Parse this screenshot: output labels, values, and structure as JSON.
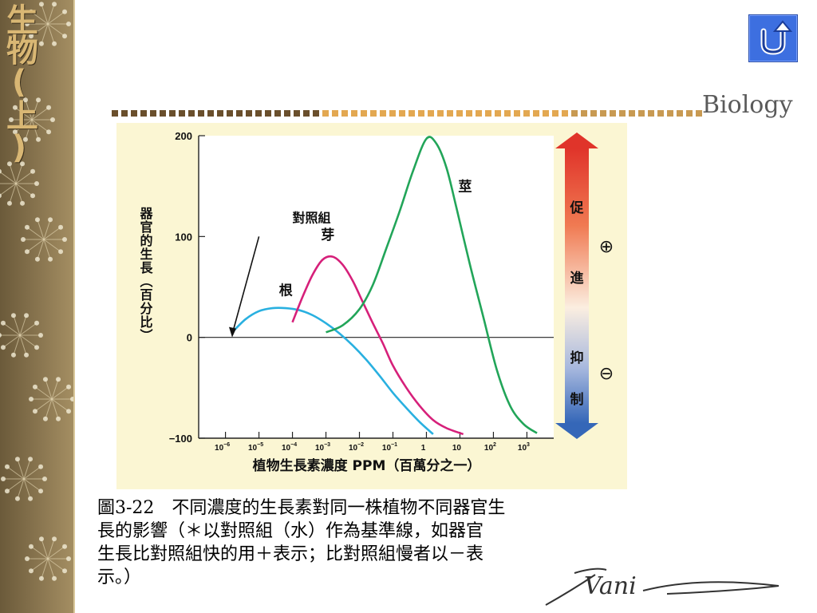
{
  "sidebar": {
    "title": "生物(上)"
  },
  "header": {
    "brand": "Biology"
  },
  "nav": {
    "home_icon": "u-turn-icon"
  },
  "colors": {
    "root": "#29b0e0",
    "bud": "#d6207a",
    "stem": "#22a559",
    "panel": "#fbf6d3",
    "promote": "#e0342a",
    "inhibit": "#3567b8"
  },
  "chart_data": {
    "type": "line",
    "ylabel": "器官的生長（百分比）",
    "xlabel": "植物生長素濃度 PPM（百萬分之一）",
    "ylim": [
      -100,
      200
    ],
    "yticks": [
      "200",
      "100",
      "0",
      "−100"
    ],
    "xlim": [
      -6.8,
      3.8
    ],
    "xtick_values": [
      -6,
      -5,
      -4,
      -3,
      -2,
      -1,
      0,
      1,
      2,
      3
    ],
    "xticks": [
      {
        "base": "10",
        "exp": "−6"
      },
      {
        "base": "10",
        "exp": "−5"
      },
      {
        "base": "10",
        "exp": "−4"
      },
      {
        "base": "10",
        "exp": "−3"
      },
      {
        "base": "10",
        "exp": "−2"
      },
      {
        "base": "10",
        "exp": "−1"
      },
      {
        "base": "1",
        "exp": ""
      },
      {
        "base": "10",
        "exp": ""
      },
      {
        "base": "10",
        "exp": "2"
      },
      {
        "base": "10",
        "exp": "3"
      }
    ],
    "x_scale": "log",
    "baseline_label": "對照組",
    "series": [
      {
        "name": "根",
        "x": [
          -5.8,
          -5.4,
          -5.0,
          -4.6,
          -4.2,
          -3.8,
          -3.4,
          -3.0,
          -2.6,
          -2.2,
          -1.8,
          -1.4,
          -1.0,
          -0.6,
          -0.2,
          0.2
        ],
        "values": [
          5,
          18,
          26,
          29,
          29,
          27,
          22,
          14,
          4,
          -8,
          -22,
          -38,
          -55,
          -70,
          -84,
          -96
        ]
      },
      {
        "name": "芽",
        "x": [
          -4.0,
          -3.7,
          -3.4,
          -3.1,
          -2.8,
          -2.5,
          -2.2,
          -1.9,
          -1.6,
          -1.3,
          -1.0,
          -0.6,
          -0.2,
          0.2,
          0.6,
          1.1
        ],
        "values": [
          15,
          40,
          62,
          77,
          80,
          72,
          56,
          35,
          14,
          -6,
          -28,
          -50,
          -68,
          -82,
          -90,
          -96
        ]
      },
      {
        "name": "莖",
        "x": [
          -3.0,
          -2.5,
          -2.0,
          -1.6,
          -1.2,
          -0.8,
          -0.4,
          0.0,
          0.3,
          0.6,
          0.9,
          1.3,
          1.7,
          2.1,
          2.5,
          2.9,
          3.3
        ],
        "values": [
          5,
          12,
          28,
          52,
          88,
          125,
          165,
          197,
          192,
          168,
          128,
          72,
          20,
          -32,
          -68,
          -86,
          -95
        ]
      }
    ],
    "side_bar": {
      "promote": [
        "促",
        "進"
      ],
      "inhibit": [
        "抑",
        "制"
      ],
      "plus": "⊕",
      "minus": "⊖"
    },
    "grid": false
  },
  "caption": {
    "lines": [
      "圖3-22　不同濃度的生長素對同一株植物不同器官生",
      "長的影響（＊以對照組（水）作為基準線，如器官",
      "生長比對照組快的用＋表示；比對照組慢者以－表",
      "示。）"
    ]
  },
  "signature": {
    "text": "Vani"
  }
}
